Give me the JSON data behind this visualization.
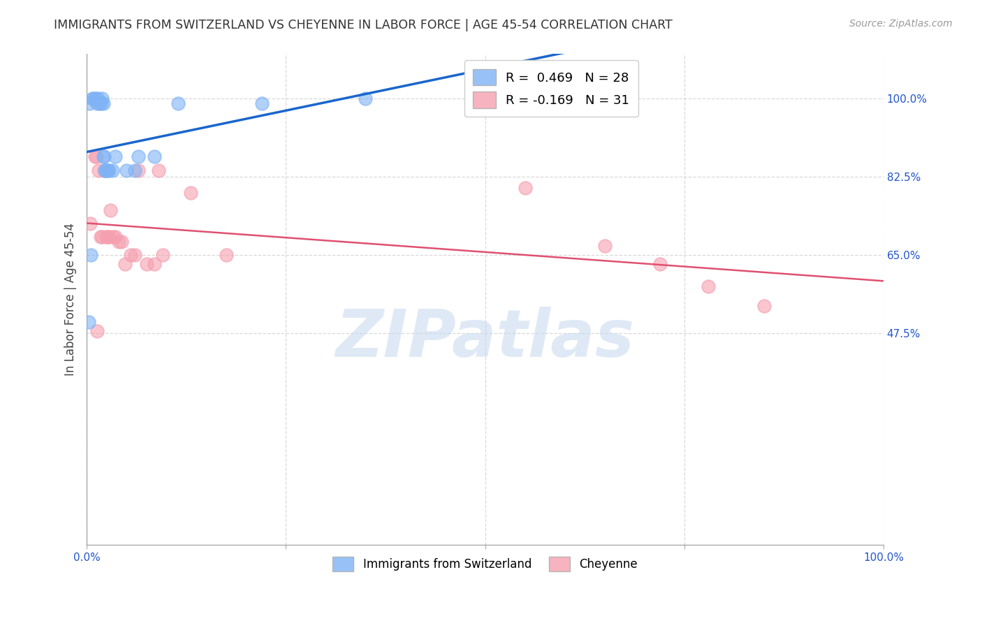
{
  "title": "IMMIGRANTS FROM SWITZERLAND VS CHEYENNE IN LABOR FORCE | AGE 45-54 CORRELATION CHART",
  "source": "Source: ZipAtlas.com",
  "ylabel": "In Labor Force | Age 45-54",
  "xlim": [
    0.0,
    1.0
  ],
  "ylim": [
    0.0,
    1.1
  ],
  "ytick_labels_right": [
    "100.0%",
    "82.5%",
    "65.0%",
    "47.5%"
  ],
  "ytick_positions_right": [
    1.0,
    0.825,
    0.65,
    0.475
  ],
  "xtick_positions": [
    0.0,
    0.25,
    0.5,
    0.75,
    1.0
  ],
  "xtick_labels": [
    "0.0%",
    "",
    "",
    "",
    "100.0%"
  ],
  "swiss_R": 0.469,
  "swiss_N": 28,
  "cheyenne_R": -0.169,
  "cheyenne_N": 31,
  "swiss_color": "#7fb3f5",
  "cheyenne_color": "#f5a0b0",
  "swiss_line_color": "#1a66cc",
  "cheyenne_line_color": "#e05070",
  "background_color": "#ffffff",
  "grid_color": "#d8d8d8",
  "swiss_x": [
    0.003,
    0.007,
    0.009,
    0.011,
    0.013,
    0.014,
    0.016,
    0.018,
    0.019,
    0.021,
    0.021,
    0.022,
    0.023,
    0.024,
    0.025,
    0.026,
    0.028,
    0.032,
    0.036,
    0.05,
    0.06,
    0.065,
    0.085,
    0.115,
    0.22,
    0.35,
    0.005,
    0.002
  ],
  "swiss_y": [
    0.99,
    1.0,
    1.0,
    1.0,
    0.99,
    1.0,
    0.99,
    0.99,
    1.0,
    0.99,
    0.87,
    0.87,
    0.84,
    0.84,
    0.84,
    0.84,
    0.84,
    0.84,
    0.87,
    0.84,
    0.84,
    0.87,
    0.87,
    0.99,
    0.99,
    1.0,
    0.65,
    0.5
  ],
  "cheyenne_x": [
    0.004,
    0.01,
    0.012,
    0.015,
    0.017,
    0.019,
    0.022,
    0.024,
    0.026,
    0.028,
    0.03,
    0.033,
    0.036,
    0.04,
    0.044,
    0.048,
    0.055,
    0.06,
    0.065,
    0.075,
    0.085,
    0.09,
    0.095,
    0.13,
    0.175,
    0.55,
    0.65,
    0.72,
    0.78,
    0.85,
    0.013
  ],
  "cheyenne_y": [
    0.72,
    0.87,
    0.87,
    0.84,
    0.69,
    0.69,
    0.84,
    0.69,
    0.69,
    0.69,
    0.75,
    0.69,
    0.69,
    0.68,
    0.68,
    0.63,
    0.65,
    0.65,
    0.84,
    0.63,
    0.63,
    0.84,
    0.65,
    0.79,
    0.65,
    0.8,
    0.67,
    0.63,
    0.58,
    0.535,
    0.48
  ],
  "watermark_text": "ZIPatlas",
  "watermark_color": "#c5d8f0",
  "watermark_alpha": 0.55
}
